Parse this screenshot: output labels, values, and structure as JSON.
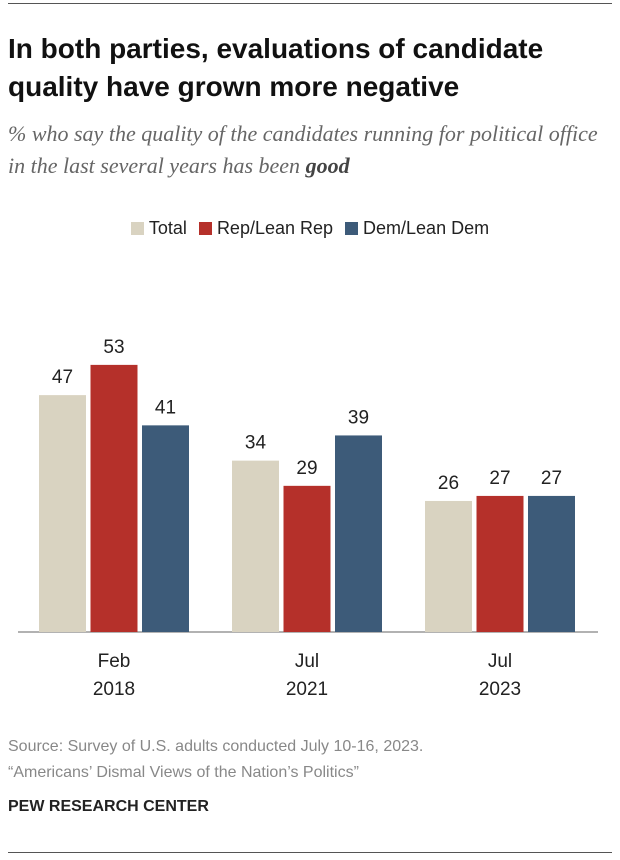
{
  "chart_data": {
    "type": "bar",
    "title": "In both parties, evaluations of candidate quality have grown more negative",
    "subtitle": "% who say the quality of the candidates running for political office in the last several years has been",
    "subtitle_emphasis": "good",
    "categories": [
      "Feb 2018",
      "Jul 2021",
      "Jul 2023"
    ],
    "series": [
      {
        "name": "Total",
        "color": "#d9d3c1",
        "values": [
          47,
          34,
          26
        ]
      },
      {
        "name": "Rep/Lean Rep",
        "color": "#b5302a",
        "values": [
          53,
          29,
          27
        ]
      },
      {
        "name": "Dem/Lean Dem",
        "color": "#3d5b79",
        "values": [
          41,
          39,
          27
        ]
      }
    ],
    "source": [
      "Source: Survey of U.S. adults conducted July 10-16, 2023.",
      "“Americans’ Dismal Views of the Nation’s Politics”"
    ],
    "footer": "PEW RESEARCH CENTER"
  }
}
